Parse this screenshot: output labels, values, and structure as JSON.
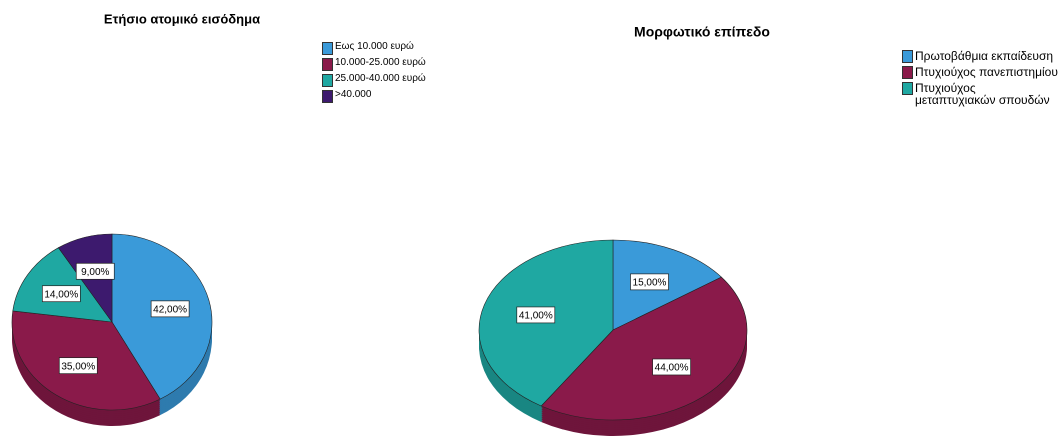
{
  "chart_data": [
    {
      "type": "pie",
      "title": "Ετήσιο ατομικό εισόδημα",
      "categories": [
        "Εως 10.000 ευρώ",
        "10.000-25.000 ευρώ",
        "25.000-40.000 ευρώ",
        ">40.000"
      ],
      "values": [
        42,
        35,
        14,
        9
      ],
      "value_labels": [
        "42,00%",
        "35,00%",
        "14,00%",
        "9,00%"
      ],
      "colors": [
        "#3a9ad9",
        "#8a1a4a",
        "#1fa8a2",
        "#3d1a6e"
      ]
    },
    {
      "type": "pie",
      "title": "Μορφωτικό επίπεδο",
      "categories": [
        "Πρωτοβάθμια εκπαίδευση",
        "Πτυχιούχος πανεπιστημίου",
        "Πτυχιούχος μεταπτυχιακών σπουδών"
      ],
      "values": [
        15,
        44,
        41
      ],
      "value_labels": [
        "15,00%",
        "44,00%",
        "41,00%"
      ],
      "colors": [
        "#3a9ad9",
        "#8a1a4a",
        "#1fa8a2"
      ]
    }
  ]
}
